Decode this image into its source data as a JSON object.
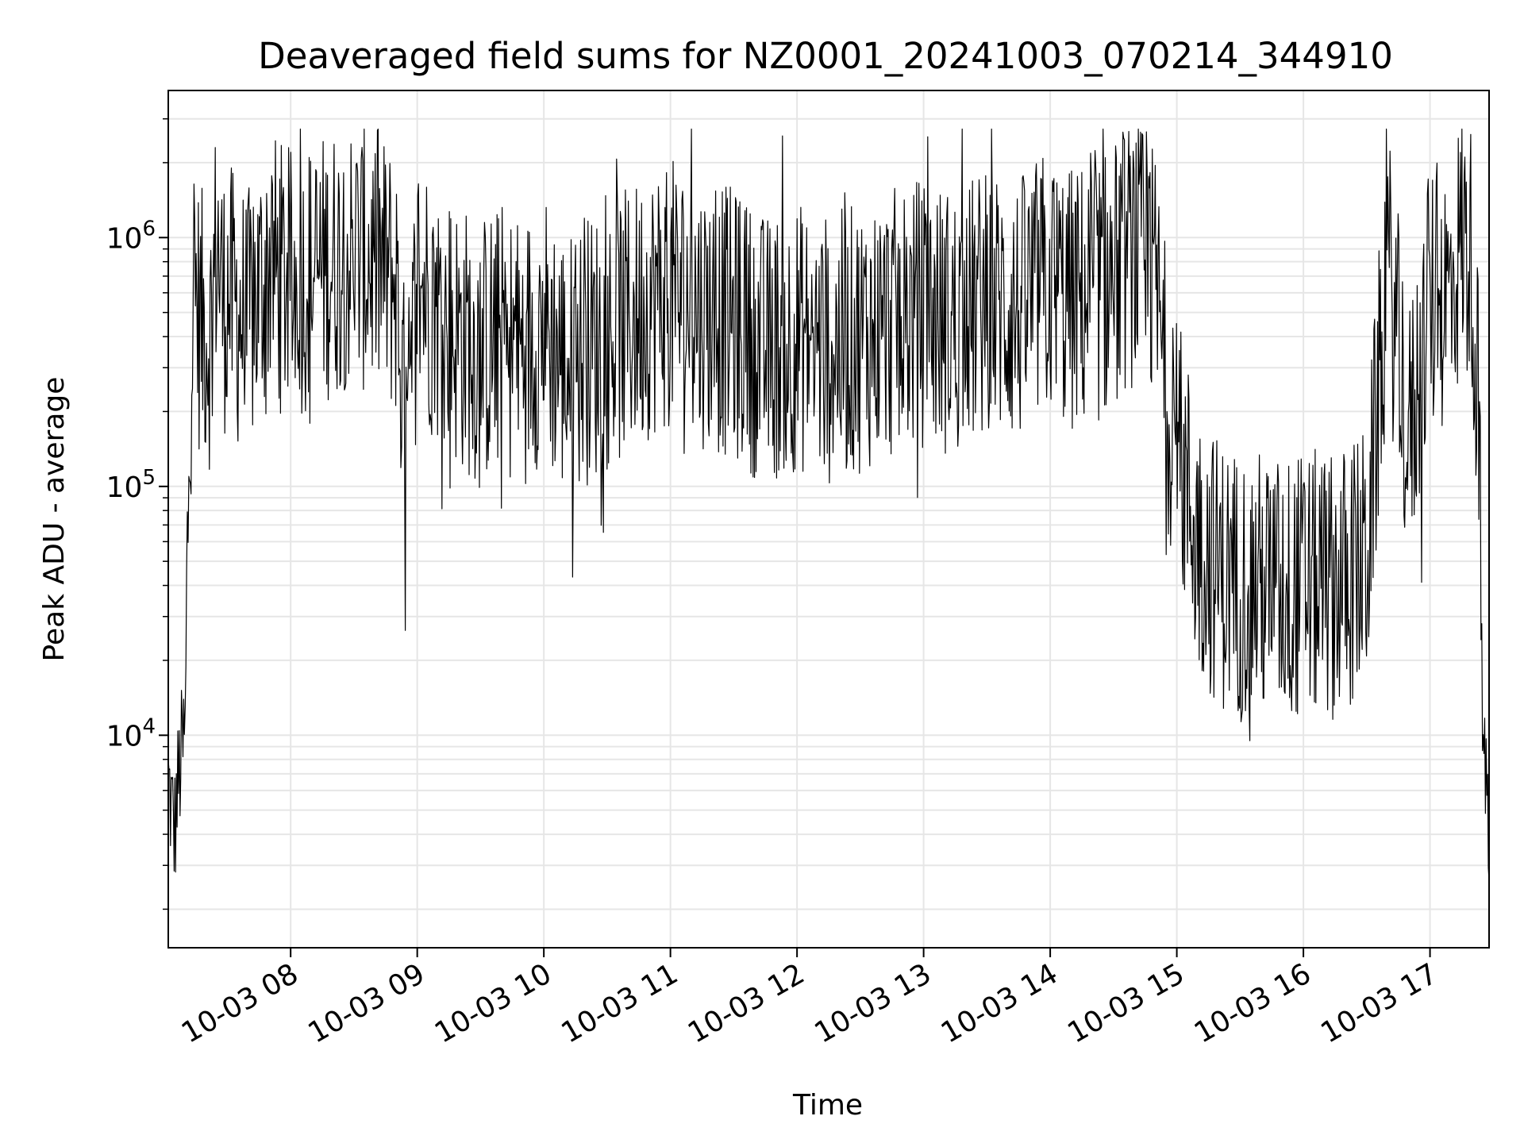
{
  "chart_data": {
    "type": "line",
    "title": "Deaveraged field sums for NZ0001_20241003_070214_344910",
    "xlabel": "Time",
    "ylabel": "Peak ADU - average",
    "yscale": "log",
    "grid": true,
    "line_color": "#000000",
    "grid_color": "#e6e6e6",
    "xlim": [
      "2024-10-03 07:02",
      "2024-10-03 17:28"
    ],
    "ylim": [
      1400,
      3900000
    ],
    "x_ticks": [
      {
        "value": "2024-10-03 08:00",
        "label": "10-03 08"
      },
      {
        "value": "2024-10-03 09:00",
        "label": "10-03 09"
      },
      {
        "value": "2024-10-03 10:00",
        "label": "10-03 10"
      },
      {
        "value": "2024-10-03 11:00",
        "label": "10-03 11"
      },
      {
        "value": "2024-10-03 12:00",
        "label": "10-03 12"
      },
      {
        "value": "2024-10-03 13:00",
        "label": "10-03 13"
      },
      {
        "value": "2024-10-03 14:00",
        "label": "10-03 14"
      },
      {
        "value": "2024-10-03 15:00",
        "label": "10-03 15"
      },
      {
        "value": "2024-10-03 16:00",
        "label": "10-03 16"
      },
      {
        "value": "2024-10-03 17:00",
        "label": "10-03 17"
      }
    ],
    "y_ticks": [
      {
        "value": 10000,
        "base": "10",
        "exp": "4"
      },
      {
        "value": 100000,
        "base": "10",
        "exp": "5"
      },
      {
        "value": 1000000,
        "base": "10",
        "exp": "6"
      }
    ],
    "series": [
      {
        "x": [
          "2024-10-03 07:02",
          "2024-10-03 07:05",
          "2024-10-03 07:06",
          "2024-10-03 07:08",
          "2024-10-03 07:10",
          "2024-10-03 07:12",
          "2024-10-03 07:14",
          "2024-10-03 07:16",
          "2024-10-03 07:18",
          "2024-10-03 07:22",
          "2024-10-03 07:25",
          "2024-10-03 07:28",
          "2024-10-03 07:30",
          "2024-10-03 07:35",
          "2024-10-03 07:40",
          "2024-10-03 07:45",
          "2024-10-03 07:50",
          "2024-10-03 07:55",
          "2024-10-03 08:00",
          "2024-10-03 08:10",
          "2024-10-03 08:20",
          "2024-10-03 08:30",
          "2024-10-03 08:40",
          "2024-10-03 08:50",
          "2024-10-03 08:55",
          "2024-10-03 09:00",
          "2024-10-03 09:10",
          "2024-10-03 09:20",
          "2024-10-03 09:30",
          "2024-10-03 09:40",
          "2024-10-03 09:50",
          "2024-10-03 10:00",
          "2024-10-03 10:10",
          "2024-10-03 10:20",
          "2024-10-03 10:30",
          "2024-10-03 10:40",
          "2024-10-03 10:50",
          "2024-10-03 11:00",
          "2024-10-03 11:15",
          "2024-10-03 11:30",
          "2024-10-03 11:45",
          "2024-10-03 12:00",
          "2024-10-03 12:15",
          "2024-10-03 12:30",
          "2024-10-03 12:45",
          "2024-10-03 13:00",
          "2024-10-03 13:15",
          "2024-10-03 13:30",
          "2024-10-03 13:45",
          "2024-10-03 13:58",
          "2024-10-03 14:10",
          "2024-10-03 14:20",
          "2024-10-03 14:30",
          "2024-10-03 14:40",
          "2024-10-03 14:50",
          "2024-10-03 14:55",
          "2024-10-03 15:00",
          "2024-10-03 15:10",
          "2024-10-03 15:20",
          "2024-10-03 15:30",
          "2024-10-03 15:40",
          "2024-10-03 15:50",
          "2024-10-03 16:00",
          "2024-10-03 16:10",
          "2024-10-03 16:20",
          "2024-10-03 16:30",
          "2024-10-03 16:40",
          "2024-10-03 16:50",
          "2024-10-03 17:00",
          "2024-10-03 17:10",
          "2024-10-03 17:15",
          "2024-10-03 17:20",
          "2024-10-03 17:23",
          "2024-10-03 17:25",
          "2024-10-03 17:28"
        ],
        "y": [
          6500,
          4000,
          5500,
          8000,
          10000,
          200000,
          700000,
          500000,
          450000,
          400000,
          1000000,
          550000,
          600000,
          500000,
          450000,
          600000,
          800000,
          700000,
          650000,
          700000,
          800000,
          850000,
          800000,
          650000,
          130000,
          700000,
          500000,
          400000,
          350000,
          400000,
          350000,
          450000,
          300000,
          350000,
          400000,
          450000,
          550000,
          600000,
          500000,
          450000,
          350000,
          400000,
          350000,
          400000,
          450000,
          500000,
          450000,
          550000,
          500000,
          650000,
          550000,
          600000,
          700000,
          900000,
          650000,
          250000,
          150000,
          60000,
          45000,
          40000,
          40000,
          38000,
          40000,
          40000,
          42000,
          50000,
          800000,
          150000,
          550000,
          600000,
          1000000,
          800000,
          200000,
          10000,
          4000
        ]
      }
    ],
    "annotations": []
  }
}
